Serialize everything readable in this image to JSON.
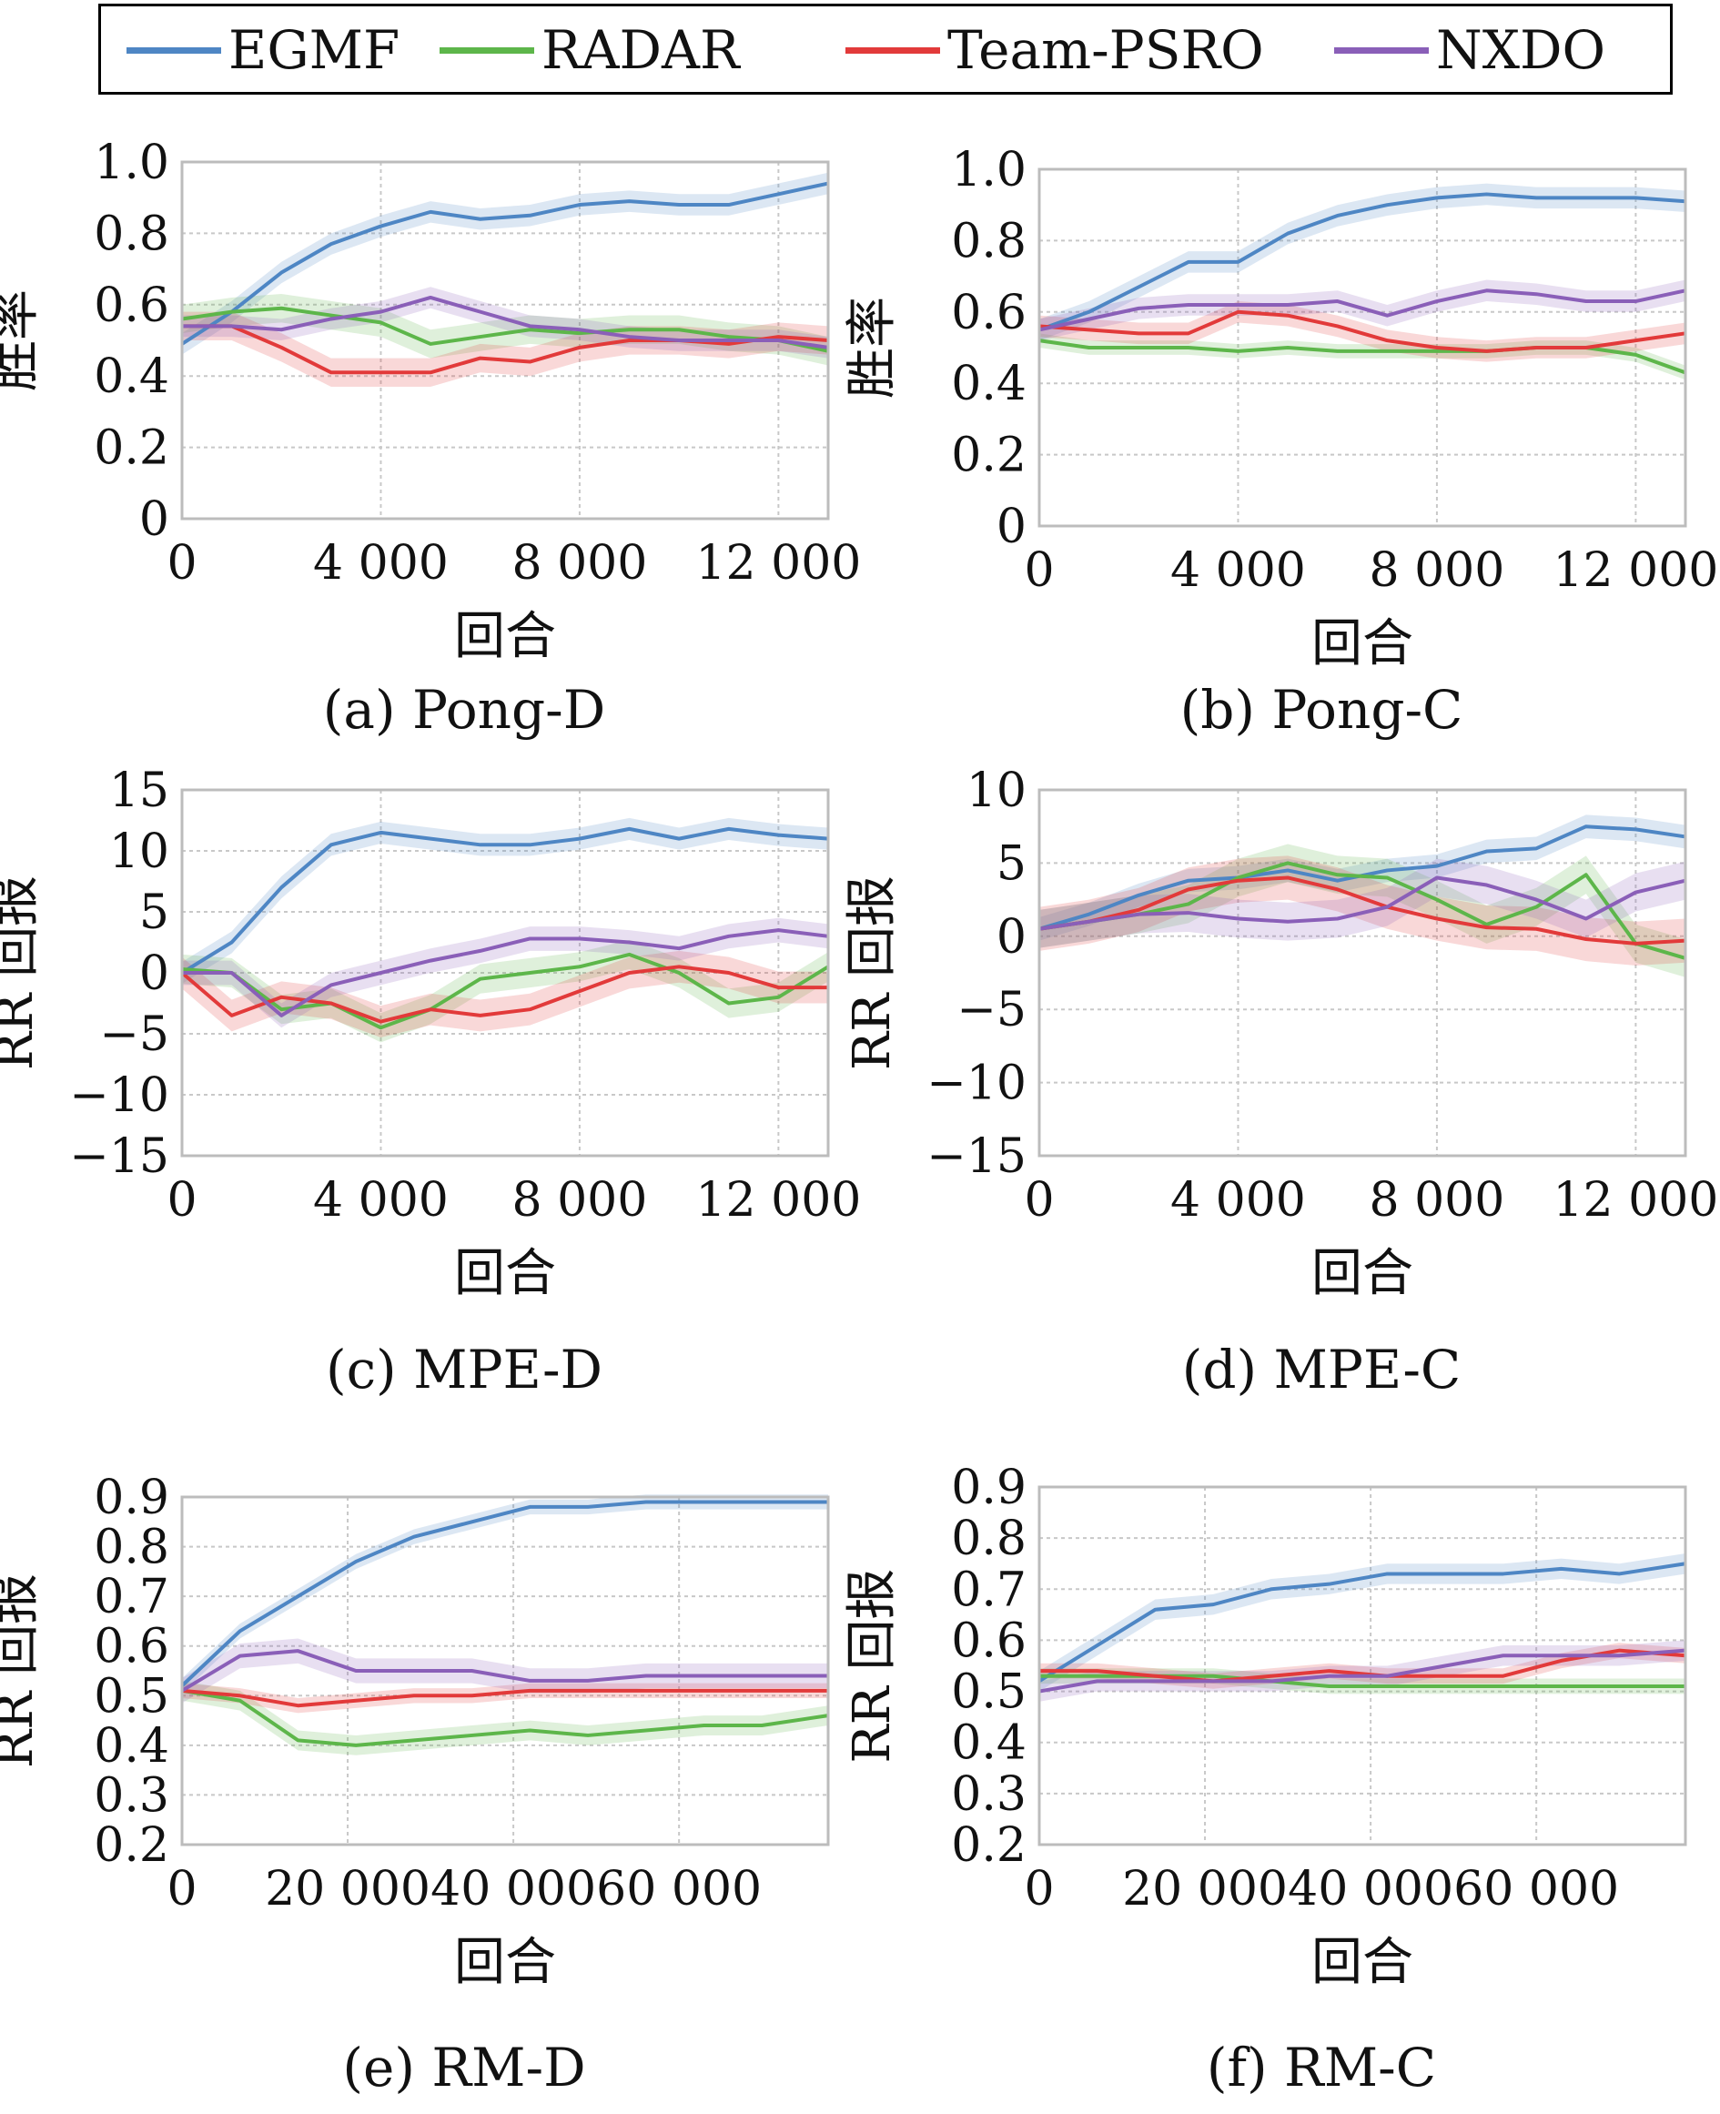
{
  "legend": [
    {
      "name": "EGMF",
      "color": "#4e86c4"
    },
    {
      "name": "RADAR",
      "color": "#5db64a"
    },
    {
      "name": "Team-PSRO",
      "color": "#e23a3a"
    },
    {
      "name": "NXDO",
      "color": "#8a5fb8"
    }
  ],
  "chart_data": [
    {
      "id": "a",
      "type": "line",
      "caption": "(a) Pong-D",
      "xlabel": "回合",
      "ylabel": "胜率",
      "xlim": [
        0,
        13000
      ],
      "ylim": [
        0,
        1.0
      ],
      "xticks": [
        0,
        4000,
        8000,
        12000
      ],
      "xticklabels": [
        "0",
        "4 000",
        "8 000",
        "12 000"
      ],
      "yticks": [
        0,
        0.2,
        0.4,
        0.6,
        0.8,
        1.0
      ],
      "yticklabels": [
        "0",
        "0.2",
        "0.4",
        "0.6",
        "0.8",
        "1.0"
      ],
      "grid": true,
      "x": [
        0,
        1000,
        2000,
        3000,
        4000,
        5000,
        6000,
        7000,
        8000,
        9000,
        10000,
        11000,
        12000,
        13000
      ],
      "series": [
        {
          "name": "EGMF",
          "values": [
            0.49,
            0.58,
            0.69,
            0.77,
            0.82,
            0.86,
            0.84,
            0.85,
            0.88,
            0.89,
            0.88,
            0.88,
            0.91,
            0.94
          ],
          "band": 0.03
        },
        {
          "name": "RADAR",
          "values": [
            0.56,
            0.58,
            0.59,
            0.57,
            0.55,
            0.49,
            0.51,
            0.53,
            0.52,
            0.53,
            0.53,
            0.51,
            0.5,
            0.47
          ],
          "band": 0.04
        },
        {
          "name": "Team-PSRO",
          "values": [
            0.54,
            0.54,
            0.48,
            0.41,
            0.41,
            0.41,
            0.45,
            0.44,
            0.48,
            0.5,
            0.5,
            0.49,
            0.51,
            0.5
          ],
          "band": 0.04
        },
        {
          "name": "NXDO",
          "values": [
            0.54,
            0.54,
            0.53,
            0.56,
            0.58,
            0.62,
            0.58,
            0.54,
            0.53,
            0.51,
            0.5,
            0.5,
            0.5,
            0.48
          ],
          "band": 0.03
        }
      ]
    },
    {
      "id": "b",
      "type": "line",
      "caption": "(b) Pong-C",
      "xlabel": "回合",
      "ylabel": "胜率",
      "xlim": [
        0,
        13000
      ],
      "ylim": [
        0,
        1.0
      ],
      "xticks": [
        0,
        4000,
        8000,
        12000
      ],
      "xticklabels": [
        "0",
        "4 000",
        "8 000",
        "12 000"
      ],
      "yticks": [
        0,
        0.2,
        0.4,
        0.6,
        0.8,
        1.0
      ],
      "yticklabels": [
        "0",
        "0.2",
        "0.4",
        "0.6",
        "0.8",
        "1.0"
      ],
      "grid": true,
      "x": [
        0,
        1000,
        2000,
        3000,
        4000,
        5000,
        6000,
        7000,
        8000,
        9000,
        10000,
        11000,
        12000,
        13000
      ],
      "series": [
        {
          "name": "EGMF",
          "values": [
            0.55,
            0.6,
            0.67,
            0.74,
            0.74,
            0.82,
            0.87,
            0.9,
            0.92,
            0.93,
            0.92,
            0.92,
            0.92,
            0.91
          ],
          "band": 0.03
        },
        {
          "name": "RADAR",
          "values": [
            0.52,
            0.5,
            0.5,
            0.5,
            0.49,
            0.5,
            0.49,
            0.49,
            0.49,
            0.49,
            0.5,
            0.5,
            0.48,
            0.43
          ],
          "band": 0.02
        },
        {
          "name": "Team-PSRO",
          "values": [
            0.56,
            0.55,
            0.54,
            0.54,
            0.6,
            0.59,
            0.56,
            0.52,
            0.5,
            0.49,
            0.5,
            0.5,
            0.52,
            0.54
          ],
          "band": 0.03
        },
        {
          "name": "NXDO",
          "values": [
            0.55,
            0.58,
            0.61,
            0.62,
            0.62,
            0.62,
            0.63,
            0.59,
            0.63,
            0.66,
            0.65,
            0.63,
            0.63,
            0.66
          ],
          "band": 0.03
        }
      ]
    },
    {
      "id": "c",
      "type": "line",
      "caption": "(c) MPE-D",
      "xlabel": "回合",
      "ylabel": "RR 回报",
      "xlim": [
        0,
        13000
      ],
      "ylim": [
        -15,
        15
      ],
      "xticks": [
        0,
        4000,
        8000,
        12000
      ],
      "xticklabels": [
        "0",
        "4 000",
        "8 000",
        "12 000"
      ],
      "yticks": [
        -15,
        -10,
        -5,
        0,
        5,
        10,
        15
      ],
      "yticklabels": [
        "−15",
        "−10",
        "−5",
        "0",
        "5",
        "10",
        "15"
      ],
      "grid": true,
      "x": [
        0,
        1000,
        2000,
        3000,
        4000,
        5000,
        6000,
        7000,
        8000,
        9000,
        10000,
        11000,
        12000,
        13000
      ],
      "series": [
        {
          "name": "EGMF",
          "values": [
            0.0,
            2.5,
            7.0,
            10.5,
            11.5,
            11.0,
            10.5,
            10.5,
            11.0,
            11.8,
            11.0,
            11.8,
            11.3,
            11.0
          ],
          "band": 0.9
        },
        {
          "name": "RADAR",
          "values": [
            0.3,
            0.0,
            -3.0,
            -2.5,
            -4.5,
            -3.0,
            -0.5,
            0.0,
            0.5,
            1.5,
            0.0,
            -2.5,
            -2.0,
            0.5
          ],
          "band": 1.2
        },
        {
          "name": "Team-PSRO",
          "values": [
            0.0,
            -3.5,
            -2.0,
            -2.5,
            -4.0,
            -3.0,
            -3.5,
            -3.0,
            -1.5,
            0.0,
            0.5,
            0.0,
            -1.2,
            -1.2
          ],
          "band": 1.3
        },
        {
          "name": "NXDO",
          "values": [
            0.0,
            0.0,
            -3.5,
            -1.0,
            0.0,
            1.0,
            1.8,
            2.8,
            2.8,
            2.5,
            2.0,
            3.0,
            3.5,
            3.0
          ],
          "band": 1.0
        }
      ]
    },
    {
      "id": "d",
      "type": "line",
      "caption": "(d) MPE-C",
      "xlabel": "回合",
      "ylabel": "RR 回报",
      "xlim": [
        0,
        13000
      ],
      "ylim": [
        -15,
        10
      ],
      "xticks": [
        0,
        4000,
        8000,
        12000
      ],
      "xticklabels": [
        "0",
        "4 000",
        "8 000",
        "12 000"
      ],
      "yticks": [
        -15,
        -10,
        -5,
        0,
        5,
        10
      ],
      "yticklabels": [
        "−15",
        "−10",
        "−5",
        "0",
        "5",
        "10"
      ],
      "grid": true,
      "x": [
        0,
        1000,
        2000,
        3000,
        4000,
        5000,
        6000,
        7000,
        8000,
        9000,
        10000,
        11000,
        12000,
        13000
      ],
      "series": [
        {
          "name": "EGMF",
          "values": [
            0.5,
            1.5,
            2.8,
            3.8,
            4.0,
            4.5,
            3.8,
            4.5,
            4.8,
            5.8,
            6.0,
            7.5,
            7.3,
            6.8
          ],
          "band": 0.8
        },
        {
          "name": "RADAR",
          "values": [
            0.5,
            1.0,
            1.5,
            2.2,
            4.0,
            5.0,
            4.2,
            4.0,
            2.5,
            0.8,
            2.0,
            4.2,
            -0.5,
            -1.5
          ],
          "band": 1.3
        },
        {
          "name": "Team-PSRO",
          "values": [
            0.5,
            1.0,
            1.8,
            3.2,
            3.8,
            4.0,
            3.2,
            2.0,
            1.2,
            0.6,
            0.5,
            -0.2,
            -0.5,
            -0.3
          ],
          "band": 1.5
        },
        {
          "name": "NXDO",
          "values": [
            0.5,
            1.0,
            1.5,
            1.6,
            1.2,
            1.0,
            1.2,
            2.0,
            4.0,
            3.5,
            2.5,
            1.2,
            3.0,
            3.8
          ],
          "band": 1.3
        }
      ]
    },
    {
      "id": "e",
      "type": "line",
      "caption": "(e) RM-D",
      "xlabel": "回合",
      "ylabel": "RR 回报",
      "xlim": [
        0,
        78000
      ],
      "ylim": [
        0.2,
        0.9
      ],
      "xticks": [
        0,
        20000,
        40000,
        60000
      ],
      "xticklabels": [
        "0",
        "20 000",
        "40 000",
        "60 000"
      ],
      "yticks": [
        0.2,
        0.3,
        0.4,
        0.5,
        0.6,
        0.7,
        0.8,
        0.9
      ],
      "yticklabels": [
        "0.2",
        "0.3",
        "0.4",
        "0.5",
        "0.6",
        "0.7",
        "0.8",
        "0.9"
      ],
      "grid": true,
      "x": [
        0,
        7000,
        14000,
        21000,
        28000,
        35000,
        42000,
        49000,
        56000,
        63000,
        70000,
        78000
      ],
      "series": [
        {
          "name": "EGMF",
          "values": [
            0.52,
            0.63,
            0.7,
            0.77,
            0.82,
            0.85,
            0.88,
            0.88,
            0.89,
            0.89,
            0.89,
            0.89
          ],
          "band": 0.015
        },
        {
          "name": "RADAR",
          "values": [
            0.51,
            0.49,
            0.41,
            0.4,
            0.41,
            0.42,
            0.43,
            0.42,
            0.43,
            0.44,
            0.44,
            0.46
          ],
          "band": 0.02
        },
        {
          "name": "Team-PSRO",
          "values": [
            0.51,
            0.5,
            0.48,
            0.49,
            0.5,
            0.5,
            0.51,
            0.51,
            0.51,
            0.51,
            0.51,
            0.51
          ],
          "band": 0.015
        },
        {
          "name": "NXDO",
          "values": [
            0.51,
            0.58,
            0.59,
            0.55,
            0.55,
            0.55,
            0.53,
            0.53,
            0.54,
            0.54,
            0.54,
            0.54
          ],
          "band": 0.025
        }
      ]
    },
    {
      "id": "f",
      "type": "line",
      "caption": "(f) RM-C",
      "xlabel": "回合",
      "ylabel": "RR 回报",
      "xlim": [
        0,
        78000
      ],
      "ylim": [
        0.2,
        0.9
      ],
      "xticks": [
        0,
        20000,
        40000,
        60000
      ],
      "xticklabels": [
        "0",
        "20 000",
        "40 000",
        "60 000"
      ],
      "yticks": [
        0.2,
        0.3,
        0.4,
        0.5,
        0.6,
        0.7,
        0.8,
        0.9
      ],
      "yticklabels": [
        "0.2",
        "0.3",
        "0.4",
        "0.5",
        "0.6",
        "0.7",
        "0.8",
        "0.9"
      ],
      "grid": true,
      "x": [
        0,
        7000,
        14000,
        21000,
        28000,
        35000,
        42000,
        49000,
        56000,
        63000,
        70000,
        78000
      ],
      "series": [
        {
          "name": "EGMF",
          "values": [
            0.52,
            0.59,
            0.66,
            0.67,
            0.7,
            0.71,
            0.73,
            0.73,
            0.73,
            0.74,
            0.73,
            0.75
          ],
          "band": 0.02
        },
        {
          "name": "RADAR",
          "values": [
            0.53,
            0.53,
            0.53,
            0.53,
            0.52,
            0.51,
            0.51,
            0.51,
            0.51,
            0.51,
            0.51,
            0.51
          ],
          "band": 0.015
        },
        {
          "name": "Team-PSRO",
          "values": [
            0.54,
            0.54,
            0.53,
            0.52,
            0.53,
            0.54,
            0.53,
            0.53,
            0.53,
            0.56,
            0.58,
            0.57
          ],
          "band": 0.015
        },
        {
          "name": "NXDO",
          "values": [
            0.5,
            0.52,
            0.52,
            0.52,
            0.52,
            0.53,
            0.53,
            0.55,
            0.57,
            0.57,
            0.57,
            0.58
          ],
          "band": 0.02
        }
      ]
    }
  ]
}
